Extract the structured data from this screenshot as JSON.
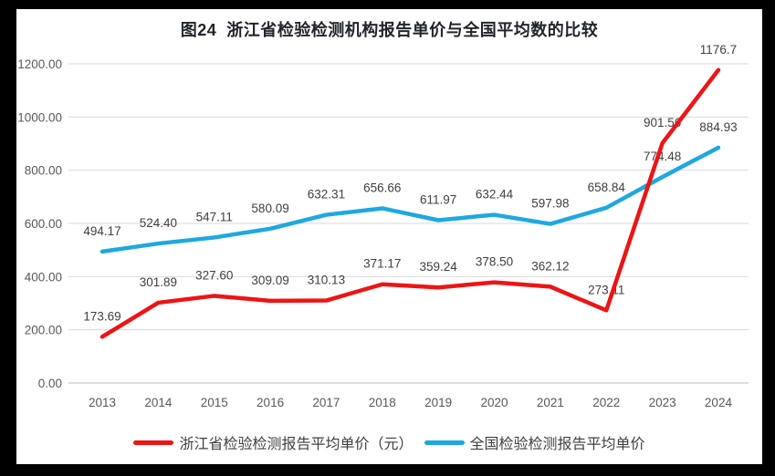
{
  "window": {
    "frame_color": "#000000",
    "canvas_color": "#ffffff"
  },
  "chart_data": {
    "type": "line",
    "title": "图24  浙江省检验检测机构报告单价与全国平均数的比较",
    "categories": [
      "2013",
      "2014",
      "2015",
      "2016",
      "2017",
      "2018",
      "2019",
      "2020",
      "2021",
      "2022",
      "2023",
      "2024"
    ],
    "series": [
      {
        "name": "浙江省检验检测报告平均单价（元）",
        "color": "#ee1414",
        "values": [
          173.69,
          301.89,
          327.6,
          309.09,
          310.13,
          371.17,
          359.24,
          378.5,
          362.12,
          273.11,
          901.56,
          1176.7
        ],
        "labels": [
          "173.69",
          "301.89",
          "327.60",
          "309.09",
          "310.13",
          "371.17",
          "359.24",
          "378.50",
          "362.12",
          "273.11",
          "901.56",
          "1176.7"
        ]
      },
      {
        "name": "全国检验检测报告平均单价",
        "color": "#1fa8e0",
        "values": [
          494.17,
          524.4,
          547.11,
          580.09,
          632.31,
          656.66,
          611.97,
          632.44,
          597.98,
          658.84,
          774.48,
          884.93
        ],
        "labels": [
          "494.17",
          "524.40",
          "547.11",
          "580.09",
          "632.31",
          "656.66",
          "611.97",
          "632.44",
          "597.98",
          "658.84",
          "774.48",
          "884.93"
        ]
      }
    ],
    "ylim": [
      0,
      1200
    ],
    "y_tick_interval": 200,
    "y_tick_labels": [
      "0.00",
      "200.00",
      "400.00",
      "600.00",
      "800.00",
      "1000.00",
      "1200.00"
    ],
    "xlabel": "",
    "ylabel": "",
    "grid": true,
    "data_labels": true,
    "legend_position": "bottom",
    "colors": {
      "gridline": "#d9d9d9",
      "axis_line": "#bfbfbf",
      "tick_text": "#595959",
      "data_label_text": "#404040"
    }
  }
}
